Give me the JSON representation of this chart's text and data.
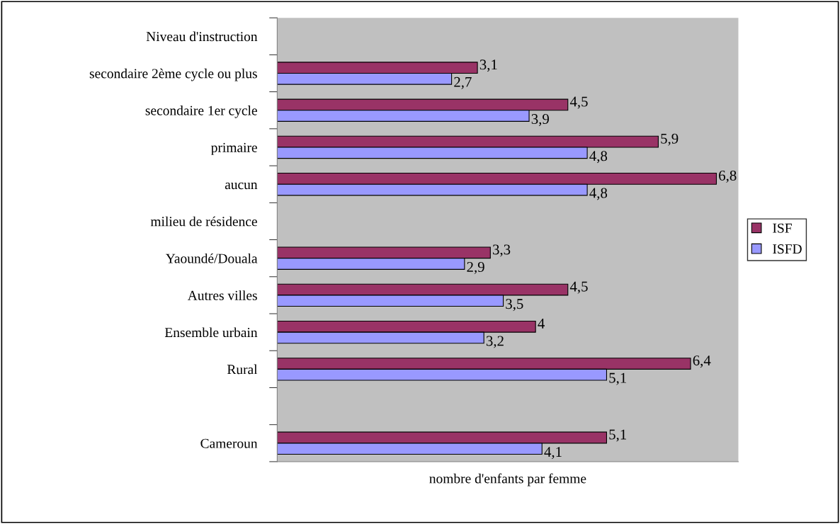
{
  "chart_data": {
    "type": "bar",
    "orientation": "horizontal",
    "xlabel": "nombre d'enfants par femme",
    "categories": [
      "Niveau d'instruction",
      "secondaire 2ème cycle ou plus",
      "secondaire 1er cycle",
      "primaire",
      "aucun",
      "milieu de résidence",
      "Yaoundé/Douala",
      "Autres villes",
      "Ensemble urbain",
      "Rural",
      null,
      "Cameroun"
    ],
    "series": [
      {
        "name": "ISF",
        "color": "#993366",
        "values": [
          null,
          3.1,
          4.5,
          5.9,
          6.8,
          null,
          3.3,
          4.5,
          4,
          6.4,
          null,
          5.1
        ],
        "value_labels": [
          null,
          "3,1",
          "4,5",
          "5,9",
          "6,8",
          null,
          "3,3",
          "4,5",
          "4",
          "6,4",
          null,
          "5,1"
        ]
      },
      {
        "name": "ISFD",
        "color": "#9999ff",
        "values": [
          null,
          2.7,
          3.9,
          4.8,
          4.8,
          null,
          2.9,
          3.5,
          3.2,
          5.1,
          null,
          4.1
        ],
        "value_labels": [
          null,
          "2,7",
          "3,9",
          "4,8",
          "4,8",
          null,
          "2,9",
          "3,5",
          "3,2",
          "5,1",
          null,
          "4,1"
        ]
      }
    ],
    "grid": false,
    "legend": "right",
    "tick_labels": "y"
  }
}
